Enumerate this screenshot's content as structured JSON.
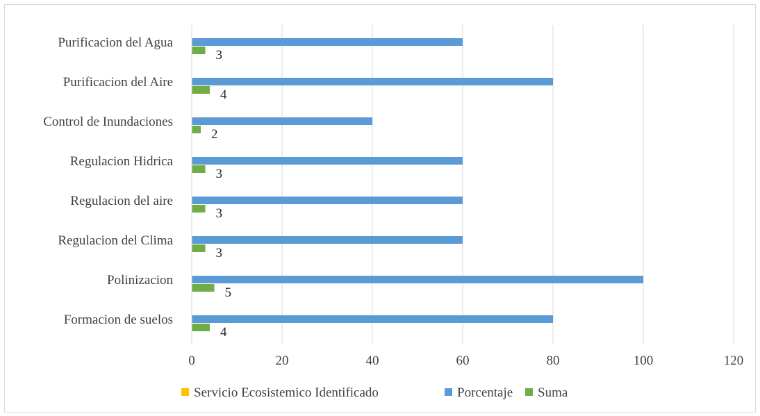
{
  "chart_data": {
    "type": "bar",
    "orientation": "horizontal",
    "categories": [
      "Formacion de suelos",
      "Polinizacion",
      "Regulacion del Clima",
      "Regulacion del aire",
      "Regulacion Hidrica",
      "Control de Inundaciones",
      "Purificacion del Aire",
      "Purificacion del Agua"
    ],
    "series": [
      {
        "name": "Servicio Ecosistemico Identificado",
        "values": [
          0,
          0,
          0,
          0,
          0,
          0,
          0,
          0
        ],
        "color": "#ffc000"
      },
      {
        "name": "Porcentaje",
        "values": [
          80,
          100,
          60,
          60,
          60,
          40,
          80,
          60
        ],
        "color": "#5b9bd5"
      },
      {
        "name": "Suma",
        "values": [
          4,
          5,
          3,
          3,
          3,
          2,
          4,
          3
        ],
        "color": "#70ad47",
        "data_labels": [
          "4",
          "5",
          "3",
          "3",
          "3",
          "2",
          "4",
          "3"
        ]
      }
    ],
    "xlim": [
      0,
      120
    ],
    "x_ticks": [
      "0",
      "20",
      "40",
      "60",
      "80",
      "100",
      "120"
    ],
    "grid": true,
    "legend_position": "bottom",
    "title": "",
    "xlabel": "",
    "ylabel": ""
  }
}
